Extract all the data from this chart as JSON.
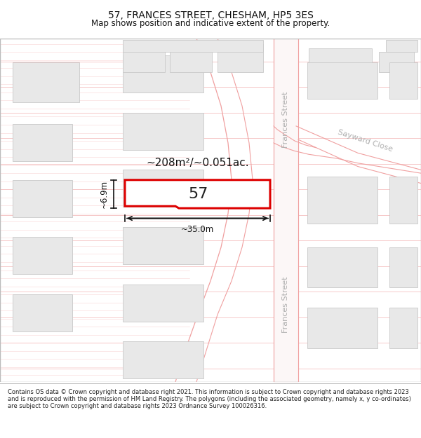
{
  "title": "57, FRANCES STREET, CHESHAM, HP5 3ES",
  "subtitle": "Map shows position and indicative extent of the property.",
  "footer": "Contains OS data © Crown copyright and database right 2021. This information is subject to Crown copyright and database rights 2023 and is reproduced with the permission of HM Land Registry. The polygons (including the associated geometry, namely x, y co-ordinates) are subject to Crown copyright and database rights 2023 Ordnance Survey 100026316.",
  "map_bg": "#ffffff",
  "road_line_color": "#f0a0a0",
  "road_fill_color": "#faf0f0",
  "building_fill": "#e8e8e8",
  "building_edge": "#c8c8c8",
  "highlight_fill": "#ffffff",
  "highlight_edge": "#dd0000",
  "measurement_color": "#111111",
  "street_label_color": "#b0b0b0",
  "area_text": "~208m²/~0.051ac.",
  "width_text": "~35.0m",
  "height_text": "~6.9m",
  "property_label": "57",
  "street_name_upper": "Frances Street",
  "street_name_lower": "Frances Street",
  "sayward_close": "Sayward Close",
  "title_fontsize": 10,
  "subtitle_fontsize": 8.5,
  "footer_fontsize": 6.0
}
